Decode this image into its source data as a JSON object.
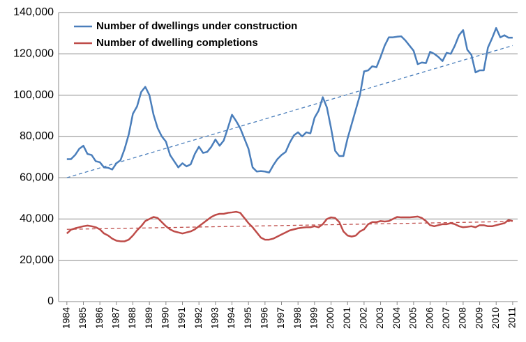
{
  "chart_data": {
    "type": "line",
    "x": [
      1984,
      1984.25,
      1984.5,
      1984.75,
      1985,
      1985.25,
      1985.5,
      1985.75,
      1986,
      1986.25,
      1986.5,
      1986.75,
      1987,
      1987.25,
      1987.5,
      1987.75,
      1988,
      1988.25,
      1988.5,
      1988.75,
      1989,
      1989.25,
      1989.5,
      1989.75,
      1990,
      1990.25,
      1990.5,
      1990.75,
      1991,
      1991.25,
      1991.5,
      1991.75,
      1992,
      1992.25,
      1992.5,
      1992.75,
      1993,
      1993.25,
      1993.5,
      1993.75,
      1994,
      1994.25,
      1994.5,
      1994.75,
      1995,
      1995.25,
      1995.5,
      1995.75,
      1996,
      1996.25,
      1996.5,
      1996.75,
      1997,
      1997.25,
      1997.5,
      1997.75,
      1998,
      1998.25,
      1998.5,
      1998.75,
      1999,
      1999.25,
      1999.5,
      1999.75,
      2000,
      2000.25,
      2000.5,
      2000.75,
      2001,
      2001.25,
      2001.5,
      2001.75,
      2002,
      2002.25,
      2002.5,
      2002.75,
      2003,
      2003.25,
      2003.5,
      2003.75,
      2004,
      2004.25,
      2004.5,
      2004.75,
      2005,
      2005.25,
      2005.5,
      2005.75,
      2006,
      2006.25,
      2006.5,
      2006.75,
      2007,
      2007.25,
      2007.5,
      2007.75,
      2008,
      2008.25,
      2008.5,
      2008.75,
      2009,
      2009.25,
      2009.5,
      2009.75,
      2010,
      2010.25,
      2010.5,
      2010.75,
      2011
    ],
    "series": [
      {
        "name": "Number of dwellings under construction",
        "color": "#4a7ebb",
        "values": [
          69000,
          69000,
          71000,
          74000,
          75500,
          71500,
          71000,
          68000,
          67500,
          65000,
          64800,
          64000,
          67000,
          68500,
          74000,
          81000,
          91000,
          94500,
          101500,
          104000,
          100000,
          90500,
          84000,
          80000,
          77500,
          71000,
          68000,
          65000,
          67000,
          65500,
          66500,
          71500,
          75000,
          72000,
          72500,
          75000,
          78500,
          75500,
          78000,
          84000,
          90500,
          87500,
          84000,
          79000,
          74000,
          65000,
          63000,
          63200,
          63000,
          62500,
          66000,
          69000,
          71000,
          72500,
          77000,
          80500,
          82000,
          80000,
          82000,
          81500,
          89000,
          92500,
          99000,
          94000,
          84000,
          73000,
          70500,
          70500,
          79000,
          86000,
          93000,
          100000,
          111500,
          112000,
          114000,
          113500,
          118500,
          124000,
          128000,
          128000,
          128300,
          128500,
          126500,
          124000,
          121500,
          115000,
          115800,
          115500,
          121000,
          120000,
          118500,
          116500,
          120500,
          120000,
          124000,
          129000,
          131500,
          122000,
          119500,
          111000,
          112000,
          112000,
          123000,
          127500,
          132500,
          128000,
          129000,
          127800,
          127800
        ],
        "trend": [
          60000,
          124000
        ]
      },
      {
        "name": "Number of dwelling completions",
        "color": "#be4b48",
        "values": [
          33000,
          34800,
          35500,
          36000,
          36500,
          36800,
          36500,
          36000,
          35000,
          33000,
          32000,
          30500,
          29500,
          29200,
          29200,
          30000,
          32000,
          34500,
          36500,
          39000,
          40000,
          41000,
          40500,
          38500,
          36500,
          35000,
          34000,
          33500,
          33000,
          33500,
          34000,
          35000,
          36500,
          38000,
          39500,
          41000,
          42000,
          42500,
          42500,
          43000,
          43200,
          43500,
          43000,
          40500,
          38000,
          36000,
          33500,
          31000,
          30000,
          30000,
          30500,
          31500,
          32500,
          33500,
          34500,
          35000,
          35500,
          35800,
          36000,
          36000,
          36500,
          36000,
          37500,
          40000,
          40800,
          40500,
          38500,
          34000,
          32000,
          31500,
          32000,
          34000,
          35000,
          37500,
          38500,
          38500,
          39000,
          38800,
          39000,
          40000,
          41000,
          40800,
          40800,
          40800,
          41000,
          41200,
          40500,
          39000,
          37000,
          36500,
          37000,
          37500,
          37500,
          38000,
          37500,
          36500,
          36000,
          36200,
          36500,
          36000,
          37000,
          37000,
          36500,
          36500,
          37000,
          37500,
          38000,
          39500,
          39000
        ],
        "trend": [
          35000,
          38800
        ]
      }
    ],
    "trend_x": [
      1984,
      2011
    ],
    "xlim": [
      1983.5,
      2011.3
    ],
    "xticks": [
      1984,
      1985,
      1986,
      1987,
      1988,
      1989,
      1990,
      1991,
      1992,
      1993,
      1994,
      1995,
      1996,
      1997,
      1998,
      1999,
      2000,
      2001,
      2002,
      2003,
      2004,
      2005,
      2006,
      2007,
      2008,
      2009,
      2010,
      2011
    ],
    "ylim": [
      0,
      140000
    ],
    "yticks": [
      0,
      {
        "value": 20000,
        "label": "20,000"
      },
      {
        "value": 40000,
        "label": "40,000"
      },
      {
        "value": 60000,
        "label": "60,000"
      },
      {
        "value": 80000,
        "label": "80,000"
      },
      {
        "value": 100000,
        "label": "100,000"
      },
      {
        "value": 120000,
        "label": "120,000"
      },
      {
        "value": 140000,
        "label": "140,000"
      }
    ],
    "grid": true,
    "legend": "top-left"
  }
}
